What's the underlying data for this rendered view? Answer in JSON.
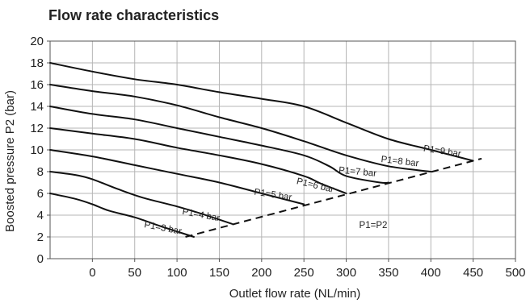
{
  "chart_data": {
    "type": "line",
    "title": "Flow rate characteristics",
    "xlabel": "Outlet flow rate (NL/min)",
    "ylabel": "Boosted pressure P2 (bar)",
    "xlim": [
      -50,
      500
    ],
    "ylim": [
      0,
      20
    ],
    "x_ticks": [
      0,
      50,
      100,
      150,
      200,
      250,
      300,
      350,
      400,
      450,
      500
    ],
    "y_ticks": [
      0,
      2,
      4,
      6,
      8,
      10,
      12,
      14,
      16,
      18,
      20
    ],
    "grid": true,
    "series": [
      {
        "name": "P1=3 bar",
        "x": [
          -50,
          -20,
          0,
          20,
          50,
          80,
          100,
          120
        ],
        "y": [
          6.0,
          5.5,
          5.0,
          4.4,
          3.8,
          3.0,
          2.5,
          2.0
        ]
      },
      {
        "name": "P1=4 bar",
        "x": [
          -50,
          -20,
          0,
          30,
          60,
          100,
          130,
          165
        ],
        "y": [
          8.0,
          7.7,
          7.3,
          6.4,
          5.6,
          4.8,
          4.1,
          3.2
        ]
      },
      {
        "name": "P1=5 bar",
        "x": [
          -50,
          0,
          50,
          100,
          150,
          200,
          250
        ],
        "y": [
          10.0,
          9.4,
          8.6,
          7.8,
          7.0,
          6.0,
          5.0
        ]
      },
      {
        "name": "P1=6 bar",
        "x": [
          -50,
          0,
          50,
          100,
          150,
          200,
          250,
          270,
          300
        ],
        "y": [
          12.0,
          11.5,
          11.0,
          10.2,
          9.5,
          8.7,
          7.6,
          6.9,
          6.0
        ]
      },
      {
        "name": "P1=7 bar",
        "x": [
          -50,
          0,
          50,
          100,
          150,
          200,
          250,
          280,
          300,
          340,
          350
        ],
        "y": [
          14.0,
          13.3,
          12.8,
          12.0,
          11.2,
          10.4,
          9.5,
          8.5,
          7.6,
          7.0,
          7.0
        ]
      },
      {
        "name": "P1=8 bar",
        "x": [
          -50,
          0,
          50,
          100,
          150,
          200,
          250,
          300,
          350,
          400
        ],
        "y": [
          16.0,
          15.4,
          14.9,
          14.1,
          13.0,
          12.0,
          10.8,
          9.5,
          8.5,
          8.0
        ]
      },
      {
        "name": "P1=9 bar",
        "x": [
          -50,
          0,
          50,
          100,
          150,
          200,
          250,
          300,
          350,
          400,
          450
        ],
        "y": [
          18.0,
          17.2,
          16.5,
          16.0,
          15.3,
          14.7,
          14.0,
          12.5,
          11.0,
          10.0,
          9.0
        ]
      }
    ],
    "reference_line": {
      "name": "P1=P2",
      "x": [
        110,
        460
      ],
      "y": [
        2.0,
        9.2
      ]
    }
  }
}
